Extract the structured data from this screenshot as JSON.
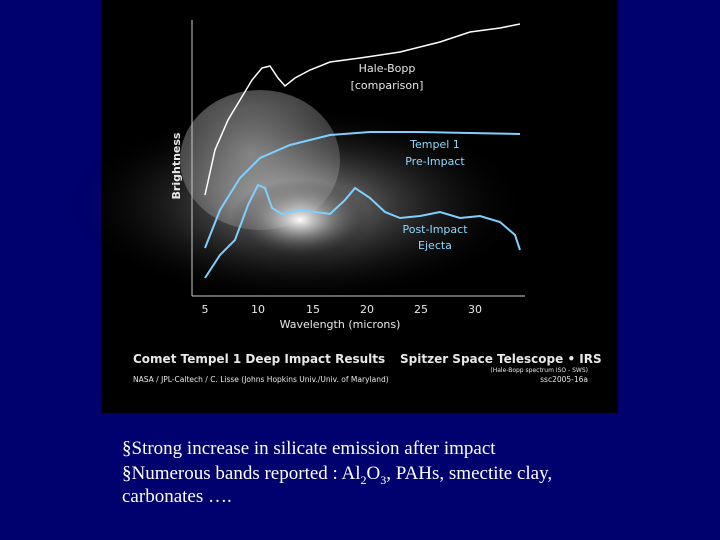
{
  "figure": {
    "y_axis_label": "Brightness",
    "x_axis_label": "Wavelength (microns)",
    "x_tick_labels": [
      "5",
      "10",
      "15",
      "20",
      "25",
      "30"
    ],
    "curve_labels": [
      [
        "Hale-Bopp",
        "[comparison]"
      ],
      [
        "Tempel 1",
        "Pre-Impact"
      ],
      [
        "Post-Impact",
        "Ejecta"
      ]
    ],
    "title": "Comet Tempel 1 Deep Impact Results",
    "instrument": "Spitzer Space Telescope • IRS",
    "note": "(Hale-Bopp spectrum ISO - SWS)",
    "credit": "NASA / JPL-Caltech / C. Lisse (Johns Hopkins Univ./Univ. of Maryland)",
    "id": "ssc2005-16a"
  },
  "bullets": [
    [
      {
        "text": "§Strong increase in silicate emission after impact"
      }
    ],
    [
      {
        "text": "§Numerous bands reported : Al"
      },
      {
        "sub": "2"
      },
      {
        "text": "O"
      },
      {
        "sub": "3"
      },
      {
        "text": ", PAHs, smectite clay,"
      }
    ],
    [
      {
        "text": "carbonates …."
      }
    ]
  ]
}
